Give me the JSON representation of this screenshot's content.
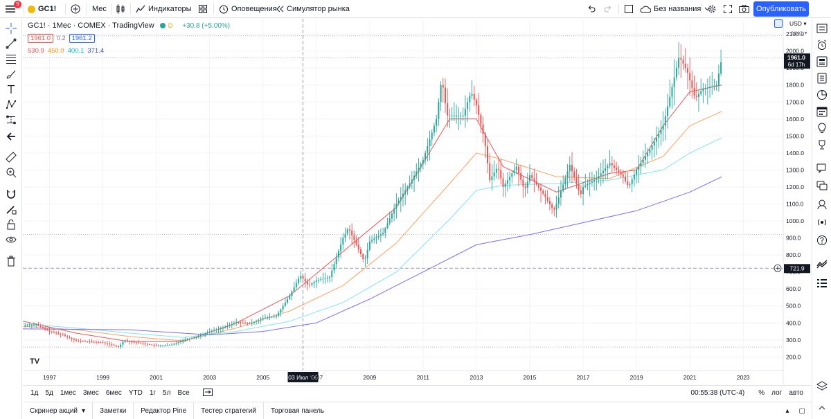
{
  "toolbar": {
    "notification_count": "5",
    "symbol": "GC1!",
    "interval": "Мес",
    "indicators": "Индикаторы",
    "alerts": "Оповещения",
    "replay": "Симулятор рынка",
    "layout_name": "Без названия",
    "publish": "Опубликовать"
  },
  "legend": {
    "title": "GC1! · 1Мес · COMEX · TradingView",
    "session_dot": "D",
    "change": "+30.8 (+5.00%)",
    "bid": "1961.0",
    "spread": "0.2",
    "ask": "1961.2",
    "ma_values": [
      "530.9",
      "450.0",
      "400.1",
      "371.4"
    ]
  },
  "price_scale": {
    "currency": "USD",
    "mode": "apoz",
    "last_price": "1961.0",
    "countdown": "6d 17h",
    "crosshair_price": "721.9"
  },
  "time_scale": {
    "crosshair_date": "03 Июл '06"
  },
  "range_bar": {
    "ranges": [
      "1д",
      "5д",
      "1мес",
      "3мес",
      "6мес",
      "YTD",
      "1г",
      "5л",
      "Все"
    ],
    "clock": "00:55:38 (UTC-4)",
    "percent": "%",
    "log": "лог",
    "auto": "авто"
  },
  "panels": [
    "Скринер акций",
    "Заметки",
    "Редактор Pine",
    "Тестер стратегий",
    "Торговая панель"
  ],
  "colors": {
    "up": "#26a69a",
    "down": "#ef5350",
    "ma1": "#ef5350",
    "ma2": "#ffa05c",
    "ma3": "#7ee6f0",
    "ma4": "#7b6cf0",
    "accent": "#2962ff"
  },
  "chart_data": {
    "type": "candlestick",
    "title": "GC1! · 1Мес · COMEX · TradingView",
    "xlabel": "",
    "ylabel": "",
    "xlim": [
      1996.0,
      2024.5
    ],
    "ylim": [
      120,
      2190
    ],
    "x_ticks": [
      "1997",
      "1999",
      "2001",
      "2003",
      "2005",
      "2007",
      "2009",
      "2011",
      "2013",
      "2015",
      "2017",
      "2019",
      "2021",
      "2023"
    ],
    "y_ticks": [
      200,
      300,
      400,
      500,
      600,
      700,
      800,
      900,
      1000,
      1100,
      1200,
      1300,
      1400,
      1500,
      1600,
      1700,
      1800,
      1900,
      2000,
      2100
    ],
    "grid": true,
    "legend": "top-left",
    "reference_lines": [
      {
        "value": 2089,
        "style": "dotted"
      },
      {
        "value": 1961,
        "style": "dotted",
        "label": "1961.0"
      },
      {
        "value": 921,
        "style": "dotted"
      },
      {
        "value": 258,
        "style": "dotted"
      },
      {
        "value": 721.9,
        "style": "dashed",
        "label": "721.9"
      }
    ],
    "crosshair_x": 2006.5,
    "anchors": [
      [
        1996.0,
        385
      ],
      [
        1996.5,
        390
      ],
      [
        1997.0,
        350
      ],
      [
        1997.5,
        330
      ],
      [
        1998.0,
        295
      ],
      [
        1998.5,
        290
      ],
      [
        1999.0,
        285
      ],
      [
        1999.6,
        258
      ],
      [
        1999.8,
        300
      ],
      [
        2000.0,
        290
      ],
      [
        2000.5,
        280
      ],
      [
        2001.0,
        265
      ],
      [
        2001.6,
        272
      ],
      [
        2002.0,
        300
      ],
      [
        2002.5,
        318
      ],
      [
        2003.0,
        350
      ],
      [
        2003.5,
        370
      ],
      [
        2004.0,
        405
      ],
      [
        2004.5,
        395
      ],
      [
        2005.0,
        430
      ],
      [
        2005.5,
        440
      ],
      [
        2006.0,
        560
      ],
      [
        2006.4,
        680
      ],
      [
        2006.7,
        620
      ],
      [
        2007.0,
        650
      ],
      [
        2007.5,
        670
      ],
      [
        2008.0,
        900
      ],
      [
        2008.2,
        960
      ],
      [
        2008.8,
        760
      ],
      [
        2009.0,
        880
      ],
      [
        2009.5,
        930
      ],
      [
        2010.0,
        1100
      ],
      [
        2010.5,
        1220
      ],
      [
        2011.0,
        1360
      ],
      [
        2011.5,
        1600
      ],
      [
        2011.7,
        1840
      ],
      [
        2011.9,
        1620
      ],
      [
        2012.5,
        1620
      ],
      [
        2012.8,
        1760
      ],
      [
        2013.0,
        1680
      ],
      [
        2013.3,
        1480
      ],
      [
        2013.5,
        1240
      ],
      [
        2013.8,
        1320
      ],
      [
        2014.0,
        1200
      ],
      [
        2014.5,
        1320
      ],
      [
        2014.8,
        1180
      ],
      [
        2015.0,
        1270
      ],
      [
        2015.5,
        1160
      ],
      [
        2015.9,
        1060
      ],
      [
        2016.0,
        1100
      ],
      [
        2016.5,
        1330
      ],
      [
        2016.9,
        1150
      ],
      [
        2017.0,
        1200
      ],
      [
        2017.5,
        1250
      ],
      [
        2018.0,
        1340
      ],
      [
        2018.5,
        1260
      ],
      [
        2018.7,
        1200
      ],
      [
        2019.0,
        1300
      ],
      [
        2019.5,
        1420
      ],
      [
        2020.0,
        1560
      ],
      [
        2020.6,
        1970
      ],
      [
        2020.9,
        1880
      ],
      [
        2021.2,
        1720
      ],
      [
        2021.5,
        1780
      ],
      [
        2021.8,
        1790
      ],
      [
        2022.0,
        1800
      ],
      [
        2022.2,
        1961
      ]
    ],
    "series": [
      {
        "name": "MA 1",
        "points": [
          [
            1996,
            410
          ],
          [
            1998,
            340
          ],
          [
            2000,
            290
          ],
          [
            2002,
            290
          ],
          [
            2004,
            400
          ],
          [
            2006,
            560
          ],
          [
            2008,
            820
          ],
          [
            2010,
            1080
          ],
          [
            2012,
            1600
          ],
          [
            2013,
            1600
          ],
          [
            2014,
            1320
          ],
          [
            2016,
            1170
          ],
          [
            2018,
            1280
          ],
          [
            2019,
            1300
          ],
          [
            2020,
            1560
          ],
          [
            2021,
            1760
          ],
          [
            2022.2,
            1800
          ]
        ]
      },
      {
        "name": "MA 2",
        "points": [
          [
            1996,
            380
          ],
          [
            1998,
            360
          ],
          [
            2000,
            320
          ],
          [
            2002,
            295
          ],
          [
            2004,
            370
          ],
          [
            2006,
            470
          ],
          [
            2008,
            620
          ],
          [
            2010,
            870
          ],
          [
            2012,
            1220
          ],
          [
            2013,
            1400
          ],
          [
            2014,
            1360
          ],
          [
            2016,
            1260
          ],
          [
            2018,
            1250
          ],
          [
            2020,
            1380
          ],
          [
            2021,
            1560
          ],
          [
            2022.2,
            1645
          ]
        ]
      },
      {
        "name": "MA 3",
        "points": [
          [
            1996,
            395
          ],
          [
            1998,
            370
          ],
          [
            2000,
            340
          ],
          [
            2002,
            315
          ],
          [
            2004,
            350
          ],
          [
            2006,
            410
          ],
          [
            2008,
            520
          ],
          [
            2010,
            700
          ],
          [
            2012,
            1010
          ],
          [
            2013,
            1180
          ],
          [
            2014,
            1210
          ],
          [
            2016,
            1220
          ],
          [
            2018,
            1240
          ],
          [
            2020,
            1300
          ],
          [
            2021,
            1400
          ],
          [
            2022.2,
            1490
          ]
        ]
      },
      {
        "name": "MA 4",
        "points": [
          [
            1996,
            365
          ],
          [
            2000,
            360
          ],
          [
            2003,
            330
          ],
          [
            2005,
            350
          ],
          [
            2007,
            400
          ],
          [
            2009,
            540
          ],
          [
            2011,
            700
          ],
          [
            2013,
            860
          ],
          [
            2015,
            920
          ],
          [
            2017,
            990
          ],
          [
            2019,
            1060
          ],
          [
            2021,
            1170
          ],
          [
            2022.2,
            1260
          ]
        ]
      }
    ]
  }
}
